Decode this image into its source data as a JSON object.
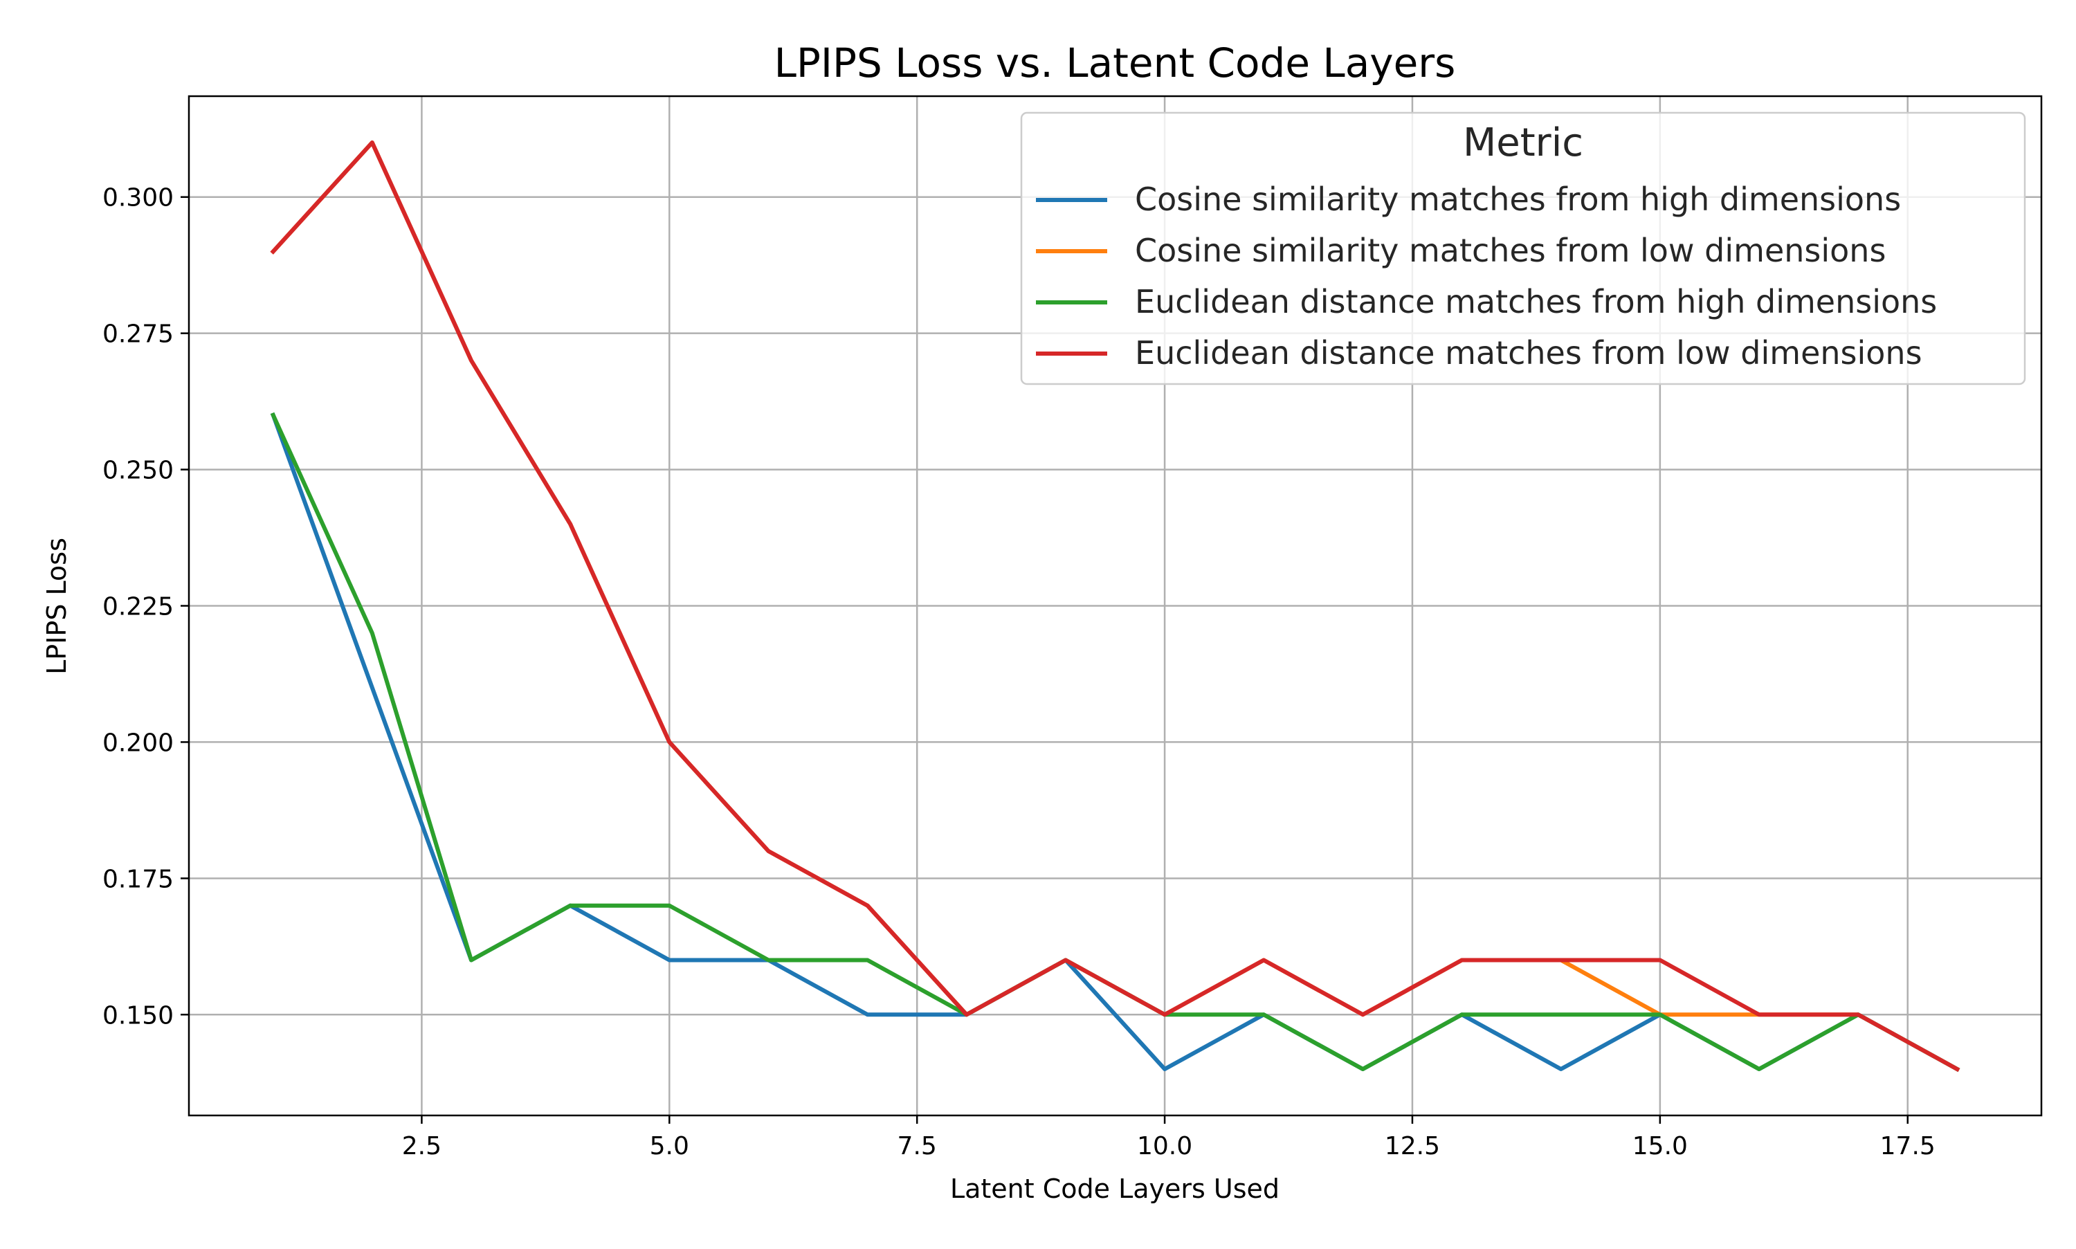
{
  "chart_data": {
    "type": "line",
    "title": "LPIPS Loss vs. Latent Code Layers",
    "xlabel": "Latent Code Layers Used",
    "ylabel": "LPIPS Loss",
    "xlim": [
      0.15,
      18.85
    ],
    "ylim": [
      0.1315,
      0.3185
    ],
    "xticks": [
      2.5,
      5.0,
      7.5,
      10.0,
      12.5,
      15.0,
      17.5
    ],
    "xtick_labels": [
      "2.5",
      "5.0",
      "7.5",
      "10.0",
      "12.5",
      "15.0",
      "17.5"
    ],
    "yticks": [
      0.15,
      0.175,
      0.2,
      0.225,
      0.25,
      0.275,
      0.3
    ],
    "ytick_labels": [
      "0.150",
      "0.175",
      "0.200",
      "0.225",
      "0.250",
      "0.275",
      "0.300"
    ],
    "grid": true,
    "legend": {
      "title": "Metric",
      "placement": "top-right"
    },
    "x": [
      1,
      2,
      3,
      4,
      5,
      6,
      7,
      8,
      9,
      10,
      11,
      12,
      13,
      14,
      15,
      16,
      17,
      18
    ],
    "series": [
      {
        "name": "Cosine similarity matches from high dimensions",
        "color": "#1f77b4",
        "values": [
          0.26,
          0.21,
          0.16,
          0.17,
          0.16,
          0.16,
          0.15,
          0.15,
          0.16,
          0.14,
          0.15,
          0.14,
          0.15,
          0.14,
          0.15,
          0.14,
          0.15,
          0.14
        ]
      },
      {
        "name": "Cosine similarity matches from low dimensions",
        "color": "#ff7f0e",
        "values": [
          0.29,
          0.31,
          0.27,
          0.24,
          0.2,
          0.18,
          0.17,
          0.15,
          0.16,
          0.15,
          0.16,
          0.15,
          0.16,
          0.16,
          0.15,
          0.15,
          0.15,
          0.14
        ]
      },
      {
        "name": "Euclidean distance matches from high dimensions",
        "color": "#2ca02c",
        "values": [
          0.26,
          0.22,
          0.16,
          0.17,
          0.17,
          0.16,
          0.16,
          0.15,
          0.16,
          0.15,
          0.15,
          0.14,
          0.15,
          0.15,
          0.15,
          0.14,
          0.15,
          0.14
        ]
      },
      {
        "name": "Euclidean distance matches from low dimensions",
        "color": "#d62728",
        "values": [
          0.29,
          0.31,
          0.27,
          0.24,
          0.2,
          0.18,
          0.17,
          0.15,
          0.16,
          0.15,
          0.16,
          0.15,
          0.16,
          0.16,
          0.16,
          0.15,
          0.15,
          0.14
        ]
      }
    ]
  }
}
